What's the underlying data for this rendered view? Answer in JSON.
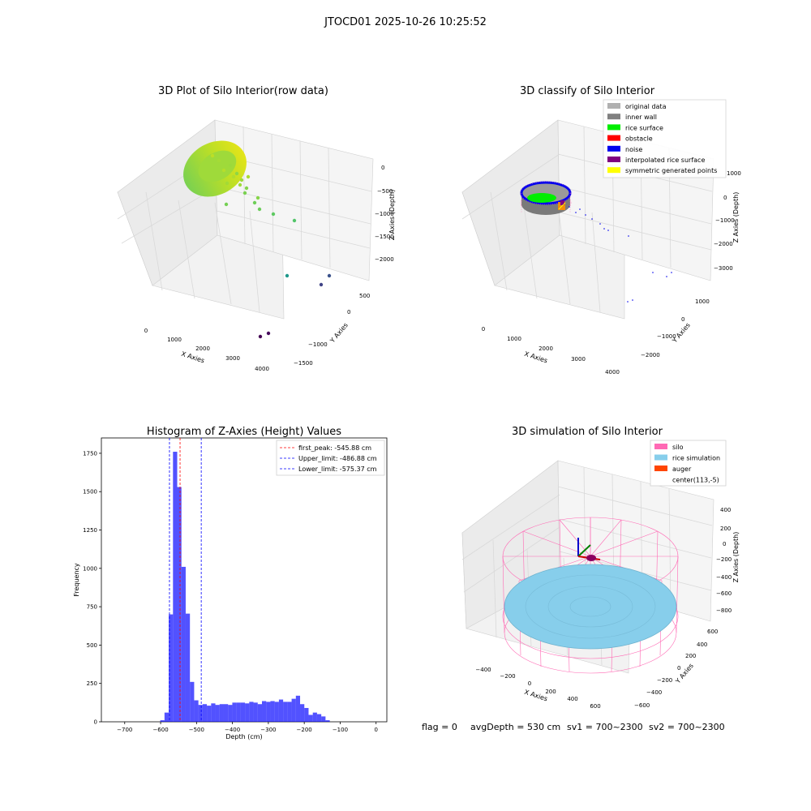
{
  "figure": {
    "suptitle": "JTOCD01 2025-10-26 10:25:52",
    "footer": {
      "flag": "flag = 0",
      "avg_depth": "avgDepth = 530 cm",
      "sv1": "sv1 = 700~2300",
      "sv2": "sv2 = 700~2300"
    }
  },
  "panels": {
    "raw": {
      "title": "3D Plot of Silo Interior(row data)",
      "xlabel": "X Axies",
      "ylabel": "Y Axies",
      "zlabel": "Z Axies (Depth)",
      "xticks": [
        "0",
        "1000",
        "2000",
        "3000",
        "4000"
      ],
      "yticks": [
        "500",
        "0",
        "−1000",
        "−1500"
      ],
      "zticks": [
        "0",
        "−500",
        "−1000",
        "−1500",
        "−2000"
      ],
      "colormap": "viridis"
    },
    "classify": {
      "title": "3D classify of Silo Interior",
      "xlabel": "X Axies",
      "ylabel": "Y Axies",
      "zlabel": "Z Axies (Depth)",
      "xticks": [
        "0",
        "1000",
        "2000",
        "3000",
        "4000"
      ],
      "yticks": [
        "1000",
        "0",
        "−1000",
        "−2000"
      ],
      "zticks": [
        "1000",
        "0",
        "−1000",
        "−2000",
        "−3000"
      ],
      "legend": [
        {
          "label": "original data",
          "color": "#b0b0b0"
        },
        {
          "label": "inner wall",
          "color": "#808080"
        },
        {
          "label": "rice surface",
          "color": "#00ee00"
        },
        {
          "label": "obstacle",
          "color": "#ff0000"
        },
        {
          "label": "noise",
          "color": "#0000ee"
        },
        {
          "label": "interpolated rice surface",
          "color": "#800080"
        },
        {
          "label": "symmetric generated points",
          "color": "#ffff00"
        }
      ]
    },
    "simulation": {
      "title": "3D simulation of Silo Interior",
      "xlabel": "X Axies",
      "ylabel": "Y Axies",
      "zlabel": "Z Axies (Depth)",
      "xticks": [
        "−400",
        "−200",
        "0",
        "200",
        "400",
        "600"
      ],
      "yticks": [
        "600",
        "400",
        "200",
        "0",
        "−200",
        "−400",
        "−600"
      ],
      "zticks": [
        "400",
        "200",
        "0",
        "−200",
        "−400",
        "−600",
        "−800"
      ],
      "legend": [
        {
          "label": "silo",
          "color": "#ff69b4"
        },
        {
          "label": "rice simulation",
          "color": "#87ceeb"
        },
        {
          "label": "auger",
          "color": "#ff4500"
        },
        {
          "label": "center(113,-5)",
          "color": ""
        }
      ]
    }
  },
  "chart_data": [
    {
      "type": "bar",
      "title": "Histogram of Z-Axies (Height) Values",
      "xlabel": "Depth (cm)",
      "ylabel": "Frequency",
      "xlim": [
        -765,
        30
      ],
      "ylim": [
        0,
        1850
      ],
      "xticks": [
        -700,
        -600,
        -500,
        -400,
        -300,
        -200,
        -100,
        0
      ],
      "yticks": [
        0,
        250,
        500,
        750,
        1000,
        1250,
        1500,
        1750
      ],
      "bar_color": "#0000ff",
      "bin_width": 11.8,
      "bin_start": -601,
      "values": [
        10,
        60,
        700,
        1760,
        1530,
        1010,
        705,
        260,
        140,
        110,
        115,
        105,
        120,
        110,
        115,
        115,
        110,
        125,
        125,
        125,
        120,
        130,
        125,
        115,
        135,
        130,
        135,
        130,
        145,
        130,
        130,
        150,
        170,
        115,
        90,
        45,
        60,
        50,
        35,
        10
      ],
      "vlines": [
        {
          "label": "first_peak: -545.88 cm",
          "x": -545.88,
          "color": "#ff0000"
        },
        {
          "label": "Upper_limit: -486.88 cm",
          "x": -486.88,
          "color": "#0000ff"
        },
        {
          "label": "Lower_limit: -575.37 cm",
          "x": -575.37,
          "color": "#0000ff"
        }
      ],
      "legend_position": "top-right"
    }
  ]
}
